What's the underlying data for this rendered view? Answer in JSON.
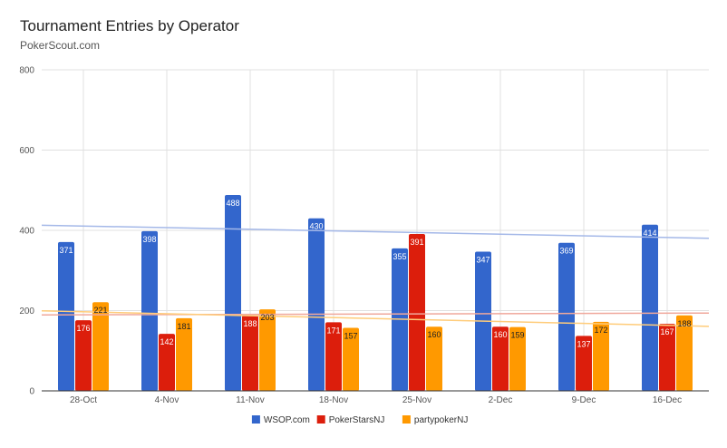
{
  "chart_data": {
    "type": "bar",
    "title": "Tournament Entries by Operator",
    "subtitle": "PokerScout.com",
    "categories": [
      "28-Oct",
      "4-Nov",
      "11-Nov",
      "18-Nov",
      "25-Nov",
      "2-Dec",
      "9-Dec",
      "16-Dec"
    ],
    "series": [
      {
        "name": "WSOP.com",
        "color": "#3366cc",
        "trend_color": "#a4b8e8",
        "values": [
          371,
          398,
          488,
          430,
          355,
          347,
          369,
          414
        ]
      },
      {
        "name": "PokerStarsNJ",
        "color": "#dc1e0c",
        "trend_color": "#f0a89c",
        "values": [
          176,
          142,
          188,
          171,
          391,
          160,
          137,
          167
        ]
      },
      {
        "name": "partypokerNJ",
        "color": "#ff9900",
        "trend_color": "#ffcc7a",
        "values": [
          221,
          181,
          203,
          157,
          160,
          159,
          172,
          188
        ]
      }
    ],
    "ylim": [
      0,
      800
    ],
    "yticks": [
      0,
      200,
      400,
      600,
      800
    ],
    "trendlines": "linear",
    "grid": true,
    "legend": "bottom",
    "xlabel": "",
    "ylabel": ""
  }
}
